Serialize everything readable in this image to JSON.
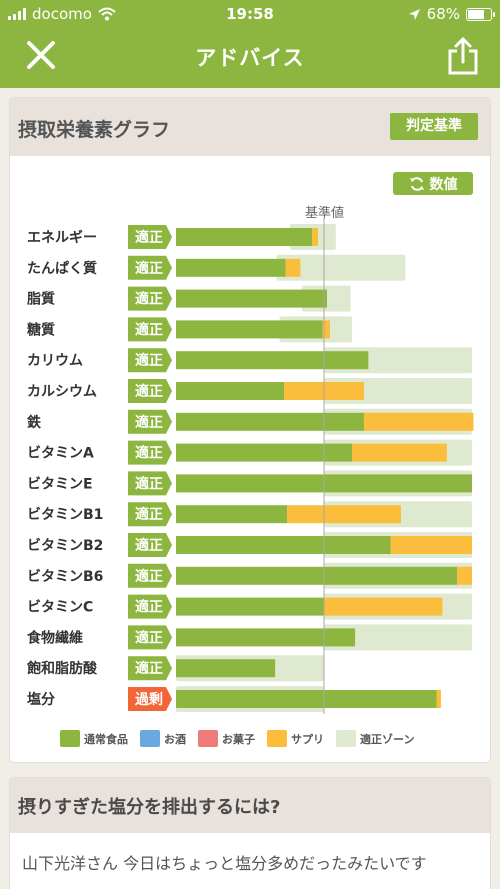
{
  "status_bar": {
    "carrier": "docomo",
    "time": "19:58",
    "battery": "68%"
  },
  "nav": {
    "title": "アドバイス",
    "close_icon": "close-icon",
    "share_icon": "share-icon"
  },
  "nutrient_card": {
    "title": "摂取栄養素グラフ",
    "criteria_button": "判定基準",
    "numbers_button": "数値",
    "baseline_label": "基準値"
  },
  "colors": {
    "normal_food": "#8cb63f",
    "alcohol": "#6aa8e0",
    "snack": "#f07a7a",
    "supplement": "#fbbd3c",
    "zone": "#dfe9d0",
    "ok_badge": "#8cb63f",
    "excess_badge": "#f16636"
  },
  "chart_data": {
    "type": "bar",
    "orientation": "horizontal",
    "stacked": true,
    "baseline_value": 100,
    "categories": [
      "エネルギー",
      "たんぱく質",
      "脂質",
      "糖質",
      "カリウム",
      "カルシウム",
      "鉄",
      "ビタミンA",
      "ビタミンE",
      "ビタミンB1",
      "ビタミンB2",
      "ビタミンB6",
      "ビタミンC",
      "食物繊維",
      "飽和脂肪酸",
      "塩分"
    ],
    "status": [
      "適正",
      "適正",
      "適正",
      "適正",
      "適正",
      "適正",
      "適正",
      "適正",
      "適正",
      "適正",
      "適正",
      "適正",
      "適正",
      "適正",
      "適正",
      "過剰"
    ],
    "series": [
      {
        "name": "通常食品",
        "values": [
          92,
          74,
          102,
          99,
          130,
          73,
          127,
          119,
          200,
          75,
          145,
          190,
          100,
          121,
          67,
          176
        ]
      },
      {
        "name": "サプリ",
        "values": [
          4,
          10,
          0,
          5,
          0,
          54,
          74,
          64,
          0,
          77,
          55,
          10,
          80,
          0,
          0,
          3
        ]
      }
    ],
    "zone_ranges": [
      [
        77,
        108
      ],
      [
        68,
        155
      ],
      [
        85,
        118
      ],
      [
        70,
        119
      ],
      [
        100,
        200
      ],
      [
        100,
        200
      ],
      [
        100,
        200
      ],
      [
        100,
        200
      ],
      [
        100,
        200
      ],
      [
        100,
        200
      ],
      [
        100,
        200
      ],
      [
        100,
        200
      ],
      [
        100,
        200
      ],
      [
        100,
        200
      ],
      [
        0,
        100
      ],
      [
        0,
        100
      ]
    ],
    "legend": [
      "通常食品",
      "お酒",
      "お菓子",
      "サプリ",
      "適正ゾーン"
    ]
  },
  "advice_card": {
    "title": "摂りすぎた塩分を排出するには?",
    "body": "山下光洋さん 今日はちょっと塩分多めだったみたいです"
  }
}
